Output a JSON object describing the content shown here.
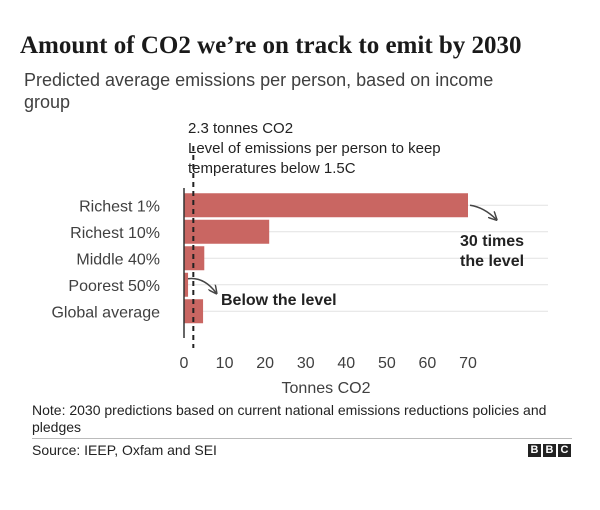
{
  "chart_data": {
    "type": "bar",
    "orientation": "horizontal",
    "title": "Amount of CO2 we’re on track to emit by 2030",
    "subtitle": "Predicted average emissions per person, based on income group",
    "categories": [
      "Richest 1%",
      "Richest 10%",
      "Middle 40%",
      "Poorest 50%",
      "Global average"
    ],
    "values": [
      70,
      21,
      5,
      1,
      4.7
    ],
    "xlabel": "Tonnes CO2",
    "ylabel": "",
    "xlim": [
      0,
      70
    ],
    "xticks": [
      0,
      10,
      20,
      30,
      40,
      50,
      60,
      70
    ],
    "grid": true,
    "bar_color": "#c96662",
    "reference_line": {
      "value": 2.3,
      "label_lines": [
        "2.3 tonnes CO2",
        "Level of emissions per person to keep",
        "temperatures below 1.5C"
      ]
    },
    "annotations": [
      {
        "text_lines": [
          "30 times",
          "the level"
        ],
        "target": "Richest 1%"
      },
      {
        "text_lines": [
          "Below the level"
        ],
        "target": "Poorest 50%"
      }
    ]
  },
  "footer": {
    "note": "Note: 2030 predictions based on current national emissions reductions policies and pledges",
    "source": "Source: IEEP, Oxfam and SEI",
    "logo_letters": [
      "B",
      "B",
      "C"
    ]
  }
}
